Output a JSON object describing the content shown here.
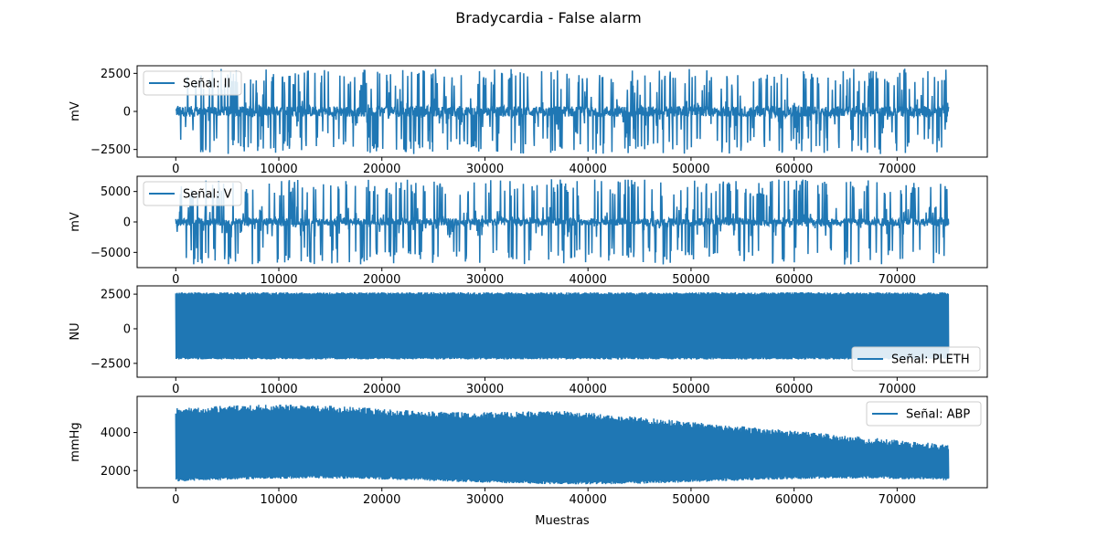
{
  "figure": {
    "title": "Bradycardia - False alarm"
  },
  "colors": {
    "line": "#1f77b4",
    "axis": "#000000",
    "legend_border": "#cccccc",
    "background": "#ffffff"
  },
  "chart_data": [
    {
      "type": "line",
      "series": [
        {
          "name": "Señal: II",
          "n": 75000
        }
      ],
      "ylabel": "mV",
      "xlabel": "",
      "xlim": [
        -3750,
        78750
      ],
      "ylim": [
        -3000,
        3000
      ],
      "xticks": [
        0,
        10000,
        20000,
        30000,
        40000,
        50000,
        60000,
        70000
      ],
      "xtick_labels": [
        "0",
        "10000",
        "20000",
        "30000",
        "40000",
        "50000",
        "60000",
        "70000"
      ],
      "yticks": [
        -2500,
        0,
        2500
      ],
      "ytick_labels": [
        "−2500",
        "0",
        "2500"
      ],
      "legend": "upper-left",
      "signal": {
        "kind": "ecg",
        "base": 0,
        "clip": [
          -2800,
          2800
        ]
      }
    },
    {
      "type": "line",
      "series": [
        {
          "name": "Señal: V",
          "n": 75000
        }
      ],
      "ylabel": "mV",
      "xlabel": "",
      "xlim": [
        -3750,
        78750
      ],
      "ylim": [
        -7500,
        7500
      ],
      "xticks": [
        0,
        10000,
        20000,
        30000,
        40000,
        50000,
        60000,
        70000
      ],
      "xtick_labels": [
        "0",
        "10000",
        "20000",
        "30000",
        "40000",
        "50000",
        "60000",
        "70000"
      ],
      "yticks": [
        -5000,
        0,
        5000
      ],
      "ytick_labels": [
        "−5000",
        "0",
        "5000"
      ],
      "legend": "upper-left",
      "signal": {
        "kind": "ecg2",
        "base": 0,
        "clip": [
          -7000,
          7000
        ]
      }
    },
    {
      "type": "line",
      "series": [
        {
          "name": "Señal: PLETH",
          "n": 75000
        }
      ],
      "ylabel": "NU",
      "xlabel": "",
      "xlim": [
        -3750,
        78750
      ],
      "ylim": [
        -3500,
        3100
      ],
      "xticks": [
        0,
        10000,
        20000,
        30000,
        40000,
        50000,
        60000,
        70000
      ],
      "xtick_labels": [
        "0",
        "10000",
        "20000",
        "30000",
        "40000",
        "50000",
        "60000",
        "70000"
      ],
      "yticks": [
        -2500,
        0,
        2500
      ],
      "ytick_labels": [
        "−2500",
        "0",
        "2500"
      ],
      "legend": "lower-right",
      "signal": {
        "kind": "band",
        "lower": -2150,
        "upper": 2550
      }
    },
    {
      "type": "line",
      "series": [
        {
          "name": "Señal: ABP",
          "n": 75000
        }
      ],
      "ylabel": "mmHg",
      "xlabel": "Muestras",
      "xlim": [
        -3750,
        78750
      ],
      "ylim": [
        1100,
        5900
      ],
      "xticks": [
        0,
        10000,
        20000,
        30000,
        40000,
        50000,
        60000,
        70000
      ],
      "xtick_labels": [
        "0",
        "10000",
        "20000",
        "30000",
        "40000",
        "50000",
        "60000",
        "70000"
      ],
      "yticks": [
        2000,
        4000
      ],
      "ytick_labels": [
        "2000",
        "4000"
      ],
      "legend": "upper-right",
      "signal": {
        "kind": "abp"
      }
    }
  ]
}
